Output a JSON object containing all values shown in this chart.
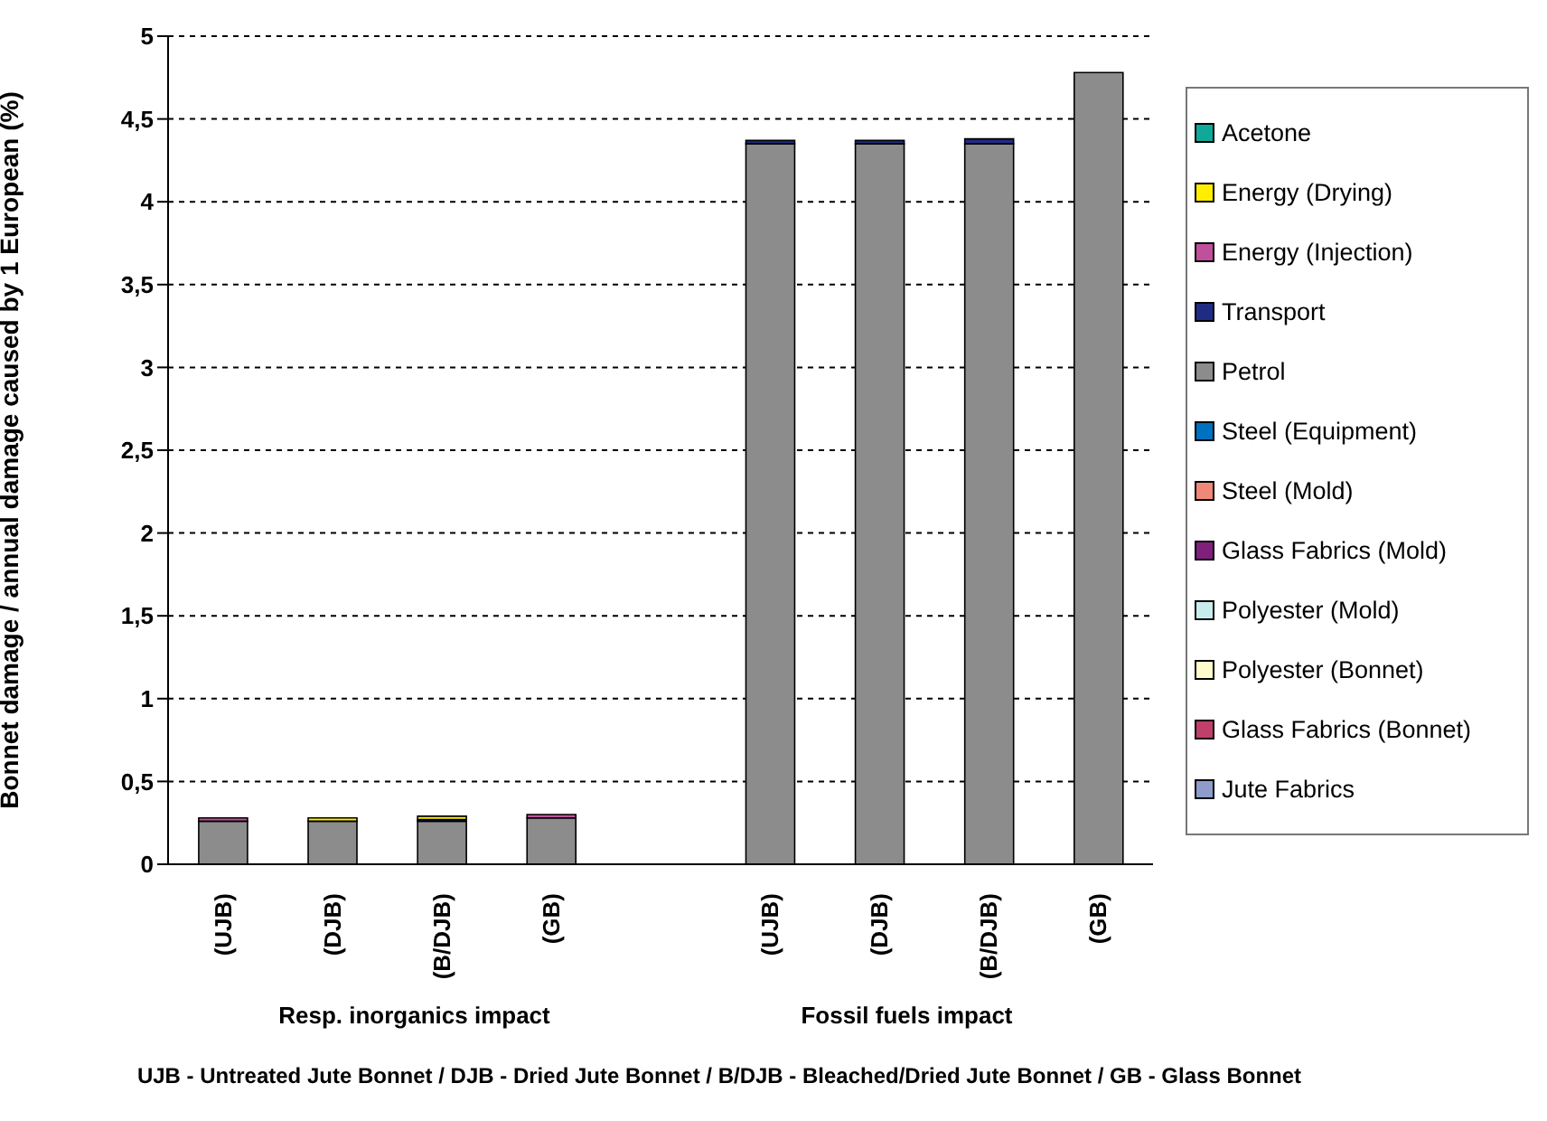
{
  "chart_data": {
    "type": "bar",
    "stacked": true,
    "ylabel": "Bonnet damage / annual damage caused by 1 European (%)",
    "categories": [
      "(UJB)",
      "(DJB)",
      "(B/DJB)",
      "(GB)",
      null,
      "(UJB)",
      "(DJB)",
      "(B/DJB)",
      "(GB)"
    ],
    "series": [
      {
        "name": "Jute Fabrics",
        "color": "#8e9ccc",
        "values": [
          0,
          0,
          0,
          0,
          0,
          0,
          0,
          0,
          0
        ]
      },
      {
        "name": "Glass Fabrics (Bonnet)",
        "color": "#c0406c",
        "values": [
          0,
          0,
          0,
          0,
          0,
          0,
          0,
          0,
          0
        ]
      },
      {
        "name": "Polyester (Bonnet)",
        "color": "#fffbcc",
        "values": [
          0,
          0,
          0,
          0,
          0,
          0,
          0,
          0,
          0
        ]
      },
      {
        "name": "Polyester (Mold)",
        "color": "#c8ecec",
        "values": [
          0,
          0,
          0,
          0,
          0,
          0,
          0,
          0,
          0
        ]
      },
      {
        "name": "Glass Fabrics (Mold)",
        "color": "#80207c",
        "values": [
          0,
          0,
          0,
          0,
          0,
          0,
          0,
          0,
          0
        ]
      },
      {
        "name": "Steel (Mold)",
        "color": "#f08878",
        "values": [
          0,
          0,
          0,
          0,
          0,
          0,
          0,
          0,
          0
        ]
      },
      {
        "name": "Steel (Equipment)",
        "color": "#0070c0",
        "values": [
          0,
          0,
          0,
          0,
          0,
          0,
          0,
          0,
          0
        ]
      },
      {
        "name": "Petrol",
        "color": "#8c8c8c",
        "values": [
          0.26,
          0.26,
          0.26,
          0.28,
          0,
          4.35,
          4.35,
          4.35,
          4.78
        ]
      },
      {
        "name": "Transport",
        "color": "#202c84",
        "values": [
          0,
          0,
          0.01,
          0,
          0,
          0.02,
          0.02,
          0.03,
          0
        ]
      },
      {
        "name": "Energy (Injection)",
        "color": "#c0509c",
        "values": [
          0.02,
          0,
          0,
          0.02,
          0,
          0,
          0,
          0,
          0
        ]
      },
      {
        "name": "Energy (Drying)",
        "color": "#ffee00",
        "values": [
          0,
          0.02,
          0.02,
          0,
          0,
          0,
          0,
          0,
          0
        ]
      },
      {
        "name": "Acetone",
        "color": "#10a898",
        "values": [
          0,
          0,
          0,
          0,
          0,
          0,
          0,
          0,
          0
        ]
      }
    ],
    "ylim": [
      0,
      5
    ],
    "yticks": [
      0,
      {
        "value": 0.5,
        "label": "0,5"
      },
      1,
      {
        "value": 1.5,
        "label": "1,5"
      },
      2,
      {
        "value": 2.5,
        "label": "2,5"
      },
      3,
      {
        "value": 3.5,
        "label": "3,5"
      },
      4,
      {
        "value": 4.5,
        "label": "4,5"
      },
      5
    ],
    "grid": "y",
    "legend": "right",
    "annotations": [
      "Resp. inorganics impact",
      "Fossil fuels impact",
      "UJB - Untreated Jute Bonnet  / DJB - Dried Jute Bonnet  /  B/DJB - Bleached/Dried Jute Bonnet  /  GB - Glass Bonnet"
    ]
  }
}
